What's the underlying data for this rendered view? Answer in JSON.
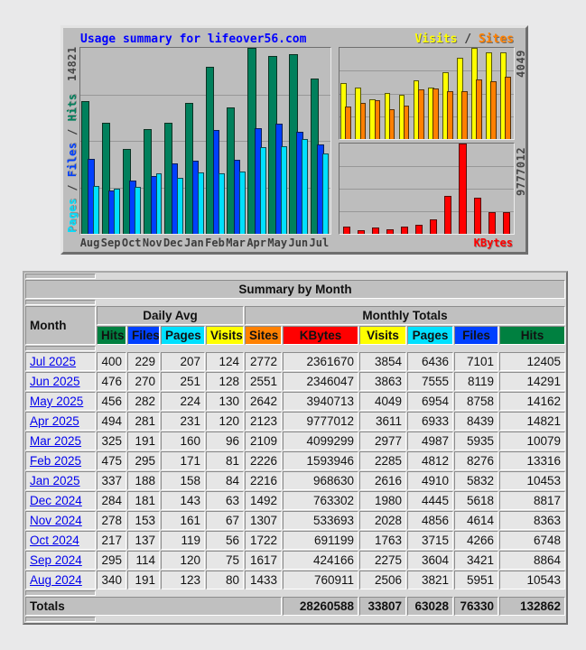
{
  "chart": {
    "title": "Usage summary for lifeover56.com",
    "visits_label": "Visits",
    "sites_label": "Sites",
    "kbytes_label": "KBytes",
    "pages_label": "Pages",
    "files_label": "Files",
    "hits_label": "Hits",
    "slash": " / ",
    "hits_axis_max": "14821",
    "visits_axis_max": "4049",
    "kbytes_axis_max": "9777012"
  },
  "chart_data": {
    "type": "bar",
    "title": "Usage summary for lifeover56.com",
    "categories": [
      "Aug",
      "Sep",
      "Oct",
      "Nov",
      "Dec",
      "Jan",
      "Feb",
      "Mar",
      "Apr",
      "May",
      "Jun",
      "Jul"
    ],
    "grid": true,
    "panels": {
      "main": {
        "ylim": [
          0,
          14821
        ],
        "axis_label": "14821",
        "series": [
          {
            "name": "Hits",
            "color": "#00805c",
            "values": [
              10543,
              8864,
              6748,
              8363,
              8817,
              10453,
              13316,
              10079,
              14821,
              14162,
              14291,
              12405
            ]
          },
          {
            "name": "Files",
            "color": "#0040ff",
            "values": [
              5951,
              3421,
              4266,
              4614,
              5618,
              5832,
              8276,
              5935,
              8439,
              8758,
              8119,
              7101
            ]
          },
          {
            "name": "Pages",
            "color": "#00e0ff",
            "values": [
              3821,
              3604,
              3715,
              4856,
              4445,
              4910,
              4812,
              4987,
              6933,
              6954,
              7555,
              6436
            ]
          }
        ]
      },
      "visits_sites": {
        "ylim": [
          0,
          4049
        ],
        "axis_label": "4049",
        "series": [
          {
            "name": "Visits",
            "color": "#ffff00",
            "values": [
              2506,
              2275,
              1763,
              2028,
              1980,
              2616,
              2285,
              2977,
              3611,
              4049,
              3863,
              3854
            ]
          },
          {
            "name": "Sites",
            "color": "#ff8000",
            "values": [
              1433,
              1617,
              1722,
              1307,
              1492,
              2216,
              2226,
              2109,
              2123,
              2642,
              2551,
              2772
            ]
          }
        ]
      },
      "kbytes": {
        "ylim": [
          0,
          9777012
        ],
        "axis_label": "9777012",
        "series": [
          {
            "name": "KBytes",
            "color": "#ff0000",
            "values": [
              760911,
              424166,
              691199,
              533693,
              763302,
              968630,
              1593946,
              4099299,
              9777012,
              3940713,
              2346047,
              2361670
            ]
          }
        ]
      }
    }
  },
  "table": {
    "title": "Summary by Month",
    "month_header": "Month",
    "daily_avg_header": "Daily Avg",
    "monthly_totals_header": "Monthly Totals",
    "columns": [
      {
        "label": "Hits",
        "color": "#008040"
      },
      {
        "label": "Files",
        "color": "#0040ff"
      },
      {
        "label": "Pages",
        "color": "#00e0ff"
      },
      {
        "label": "Visits",
        "color": "#ffff00"
      },
      {
        "label": "Sites",
        "color": "#ff8000"
      },
      {
        "label": "KBytes",
        "color": "#ff0000"
      },
      {
        "label": "Visits",
        "color": "#ffff00"
      },
      {
        "label": "Pages",
        "color": "#00e0ff"
      },
      {
        "label": "Files",
        "color": "#0040ff"
      },
      {
        "label": "Hits",
        "color": "#008040"
      }
    ],
    "rows": [
      {
        "month": "Jul 2025",
        "values": [
          400,
          229,
          207,
          124,
          2772,
          2361670,
          3854,
          6436,
          7101,
          12405
        ]
      },
      {
        "month": "Jun 2025",
        "values": [
          476,
          270,
          251,
          128,
          2551,
          2346047,
          3863,
          7555,
          8119,
          14291
        ]
      },
      {
        "month": "May 2025",
        "values": [
          456,
          282,
          224,
          130,
          2642,
          3940713,
          4049,
          6954,
          8758,
          14162
        ]
      },
      {
        "month": "Apr 2025",
        "values": [
          494,
          281,
          231,
          120,
          2123,
          9777012,
          3611,
          6933,
          8439,
          14821
        ]
      },
      {
        "month": "Mar 2025",
        "values": [
          325,
          191,
          160,
          96,
          2109,
          4099299,
          2977,
          4987,
          5935,
          10079
        ]
      },
      {
        "month": "Feb 2025",
        "values": [
          475,
          295,
          171,
          81,
          2226,
          1593946,
          2285,
          4812,
          8276,
          13316
        ]
      },
      {
        "month": "Jan 2025",
        "values": [
          337,
          188,
          158,
          84,
          2216,
          968630,
          2616,
          4910,
          5832,
          10453
        ]
      },
      {
        "month": "Dec 2024",
        "values": [
          284,
          181,
          143,
          63,
          1492,
          763302,
          1980,
          4445,
          5618,
          8817
        ]
      },
      {
        "month": "Nov 2024",
        "values": [
          278,
          153,
          161,
          67,
          1307,
          533693,
          2028,
          4856,
          4614,
          8363
        ]
      },
      {
        "month": "Oct 2024",
        "values": [
          217,
          137,
          119,
          56,
          1722,
          691199,
          1763,
          3715,
          4266,
          6748
        ]
      },
      {
        "month": "Sep 2024",
        "values": [
          295,
          114,
          120,
          75,
          1617,
          424166,
          2275,
          3604,
          3421,
          8864
        ]
      },
      {
        "month": "Aug 2024",
        "values": [
          340,
          191,
          123,
          80,
          1433,
          760911,
          2506,
          3821,
          5951,
          10543
        ]
      }
    ],
    "totals_label": "Totals",
    "totals": [
      28260588,
      33807,
      63028,
      76330,
      132862
    ]
  }
}
